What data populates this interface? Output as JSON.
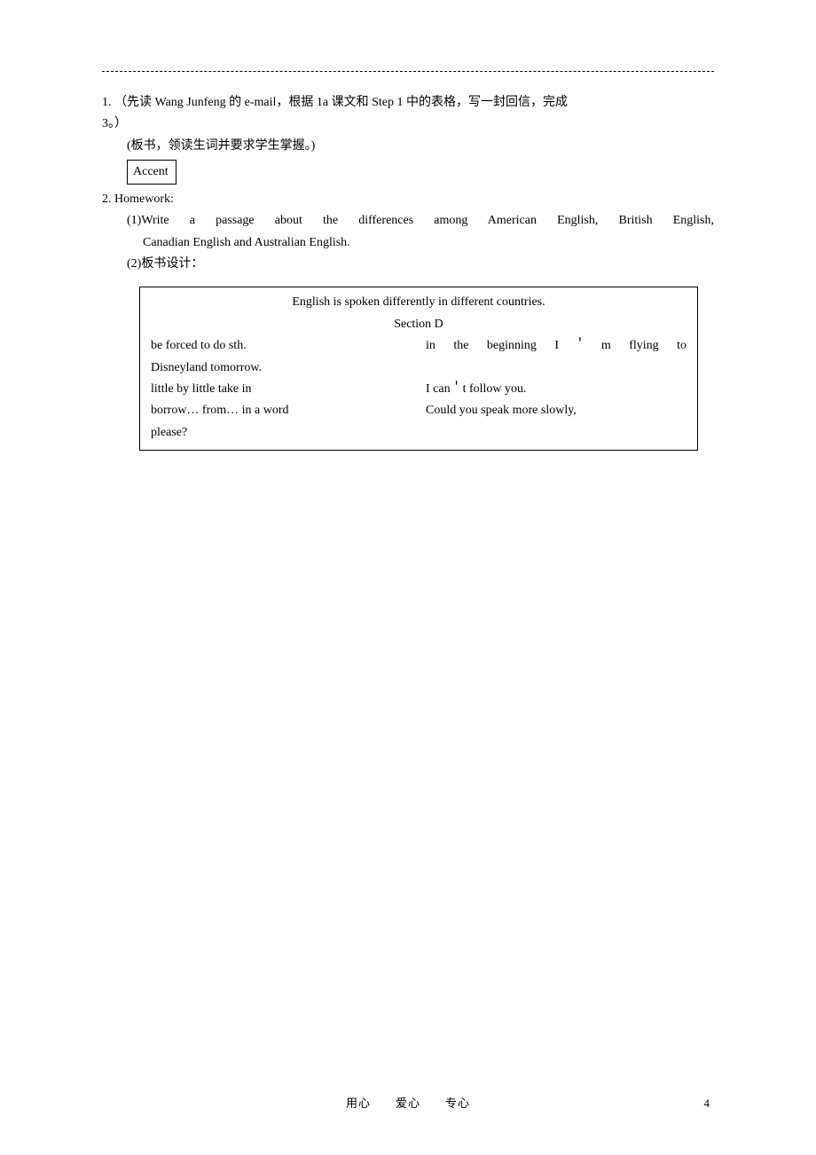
{
  "item1": {
    "line1": "1. （先读 Wang Junfeng 的 e-mail，根据 1a 课文和 Step 1 中的表格，写一封回信，完成",
    "line2": "3。）",
    "banshu": "(板书，领读生词并要求学生掌握。)",
    "box": "Accent"
  },
  "item2": {
    "header": "2. Homework:",
    "sub1_line1": "(1)Write a passage about the differences among American English, British English,",
    "sub1_line2": "Canadian English and Australian English.",
    "sub2": "(2)板书设计："
  },
  "board": {
    "title": "English is spoken differently in different countries.",
    "section": "Section D",
    "row1_left": "be forced to do sth.",
    "row1_right": "in the beginning  I＇m flying to",
    "row1_cont": "Disneyland tomorrow.",
    "row2_left": "little by little   take in",
    "row2_right": "I can＇t follow you.",
    "row3_left": "borrow… from…    in a word",
    "row3_right": "Could you speak more slowly,",
    "row3_cont": "please?"
  },
  "footer": {
    "text": "用心  爱心  专心",
    "page": "4"
  }
}
